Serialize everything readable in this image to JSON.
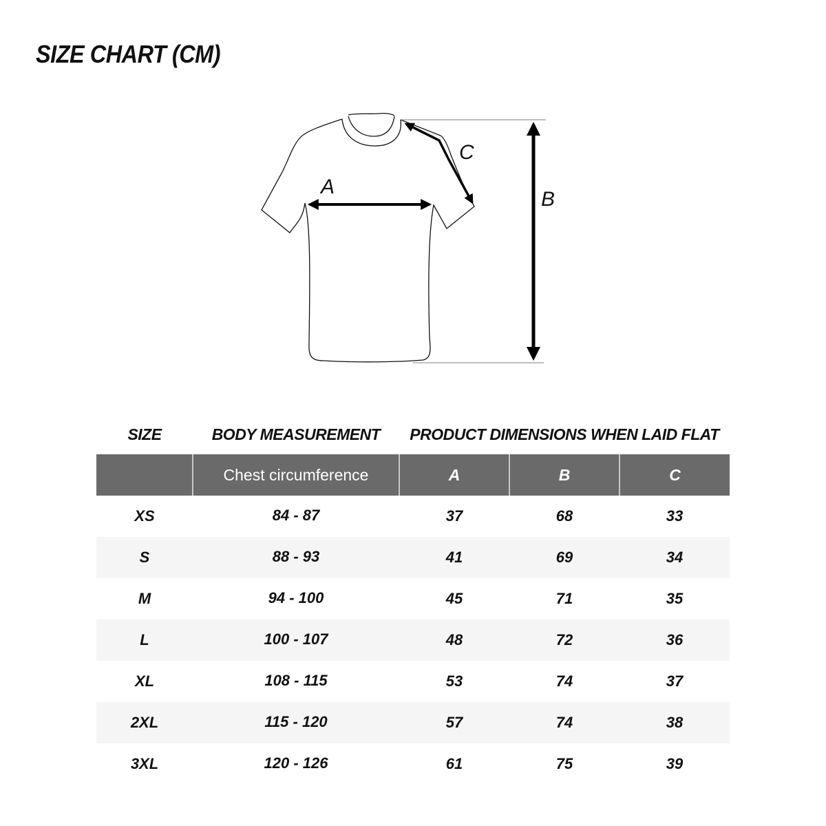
{
  "title": "SIZE CHART (CM)",
  "diagram": {
    "labels": {
      "a": "A",
      "b": "B",
      "c": "C"
    }
  },
  "table": {
    "group_headers": {
      "size": "SIZE",
      "body": "BODY MEASUREMENT",
      "product": "PRODUCT DIMENSIONS WHEN LAID FLAT"
    },
    "columns": [
      "",
      "Chest circumference",
      "A",
      "B",
      "C"
    ],
    "rows": [
      [
        "XS",
        "84 - 87",
        "37",
        "68",
        "33"
      ],
      [
        "S",
        "88 - 93",
        "41",
        "69",
        "34"
      ],
      [
        "M",
        "94 - 100",
        "45",
        "71",
        "35"
      ],
      [
        "L",
        "100 - 107",
        "48",
        "72",
        "36"
      ],
      [
        "XL",
        "108 - 115",
        "53",
        "74",
        "37"
      ],
      [
        "2XL",
        "115 - 120",
        "57",
        "74",
        "38"
      ],
      [
        "3XL",
        "120 - 126",
        "61",
        "75",
        "39"
      ]
    ]
  },
  "colors": {
    "header_bg": "#6a6a6a",
    "alt_row_bg": "#f5f5f5"
  }
}
